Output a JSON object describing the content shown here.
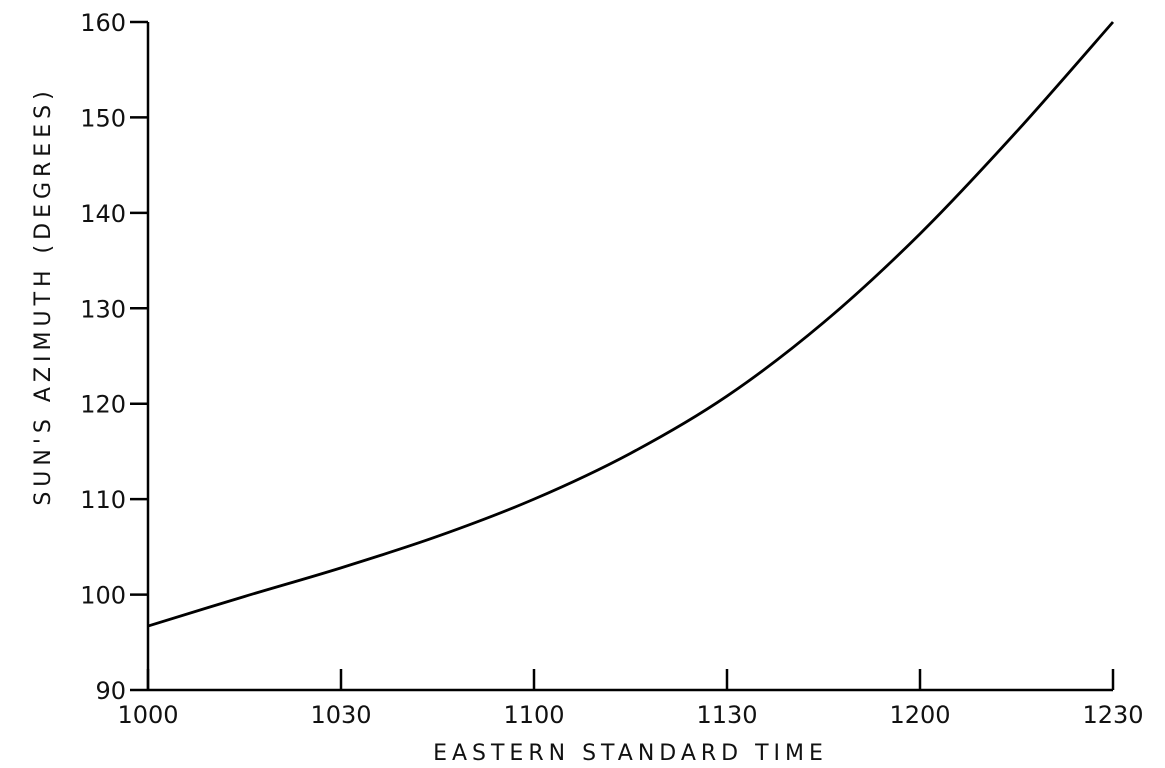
{
  "chart_data": {
    "type": "line",
    "title": "",
    "xlabel": "EASTERN STANDARD TIME",
    "ylabel": "SUN'S AZIMUTH (DEGREES)",
    "xlim": [
      "1000",
      "1230"
    ],
    "ylim": [
      90,
      160
    ],
    "x_tick_labels": [
      "1000",
      "1030",
      "1100",
      "1130",
      "1200",
      "1230"
    ],
    "y_tick_labels": [
      "90",
      "100",
      "110",
      "120",
      "130",
      "140",
      "150",
      "160"
    ],
    "grid": false,
    "series": [
      {
        "x": [
          "1000",
          "1015",
          "1030",
          "1045",
          "1100",
          "1115",
          "1130",
          "1145",
          "1200",
          "1215",
          "1230"
        ],
        "y": [
          96.7,
          99.8,
          102.8,
          106.1,
          110.0,
          114.8,
          120.8,
          128.5,
          137.8,
          148.5,
          160.0
        ]
      }
    ],
    "colors": {
      "line": "#000000",
      "axis": "#000000"
    }
  }
}
